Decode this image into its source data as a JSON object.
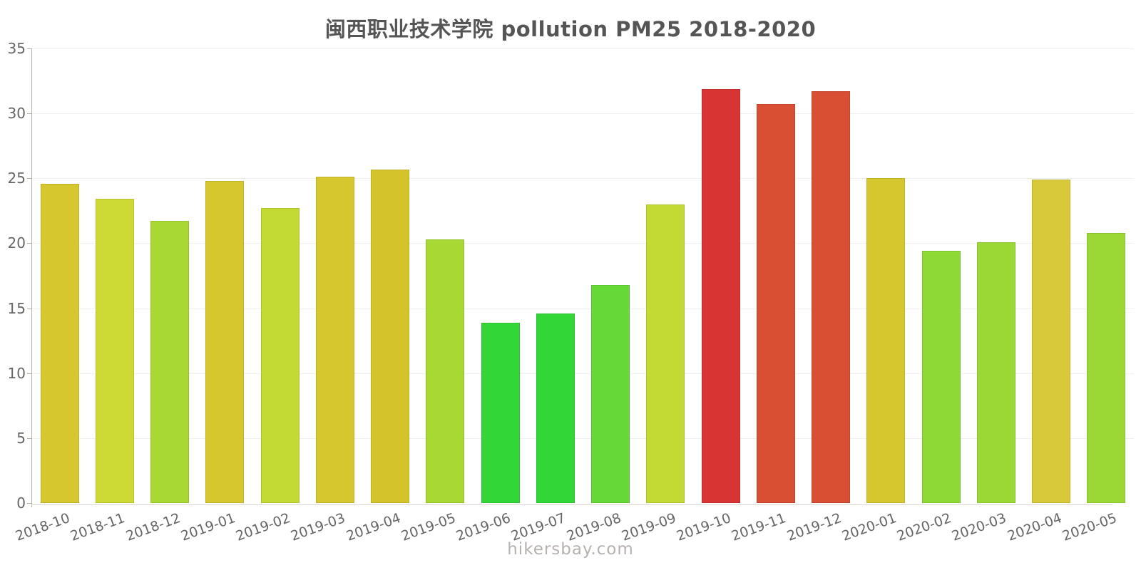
{
  "title": "闽西职业技术学院 pollution PM25 2018-2020",
  "footer": {
    "text": "hikersbay.com"
  },
  "chart_data": {
    "type": "bar",
    "title": "闽西职业技术学院 pollution PM25 2018-2020",
    "xlabel": "",
    "ylabel": "",
    "ylim": [
      0,
      35
    ],
    "yticks": [
      0,
      5,
      10,
      15,
      20,
      25,
      30,
      35
    ],
    "grid": true,
    "legend": "none",
    "categories": [
      "2018-10",
      "2018-11",
      "2018-12",
      "2019-01",
      "2019-02",
      "2019-03",
      "2019-04",
      "2019-05",
      "2019-06",
      "2019-07",
      "2019-08",
      "2019-09",
      "2019-10",
      "2019-11",
      "2019-12",
      "2020-01",
      "2020-02",
      "2020-03",
      "2020-04",
      "2020-05"
    ],
    "values": [
      24.6,
      23.4,
      21.7,
      24.8,
      22.7,
      25.1,
      25.7,
      20.3,
      13.9,
      14.6,
      16.8,
      23.0,
      31.9,
      30.7,
      31.7,
      25.0,
      19.4,
      20.1,
      24.9,
      20.8
    ],
    "bar_colors": [
      "#d6c72e",
      "#cdd934",
      "#a8d834",
      "#d6c72e",
      "#c3d934",
      "#d6c72e",
      "#d4c32a",
      "#a8d834",
      "#33d637",
      "#33d637",
      "#66d838",
      "#c3d934",
      "#d93434",
      "#d94f33",
      "#d94f33",
      "#d6c72e",
      "#8ed936",
      "#9bd836",
      "#d8c93a",
      "#9bd836"
    ],
    "axis_color": "#b9b1a9",
    "grid_color": "#f2f0ee",
    "label_color": "#666666",
    "title_color": "#555555"
  }
}
